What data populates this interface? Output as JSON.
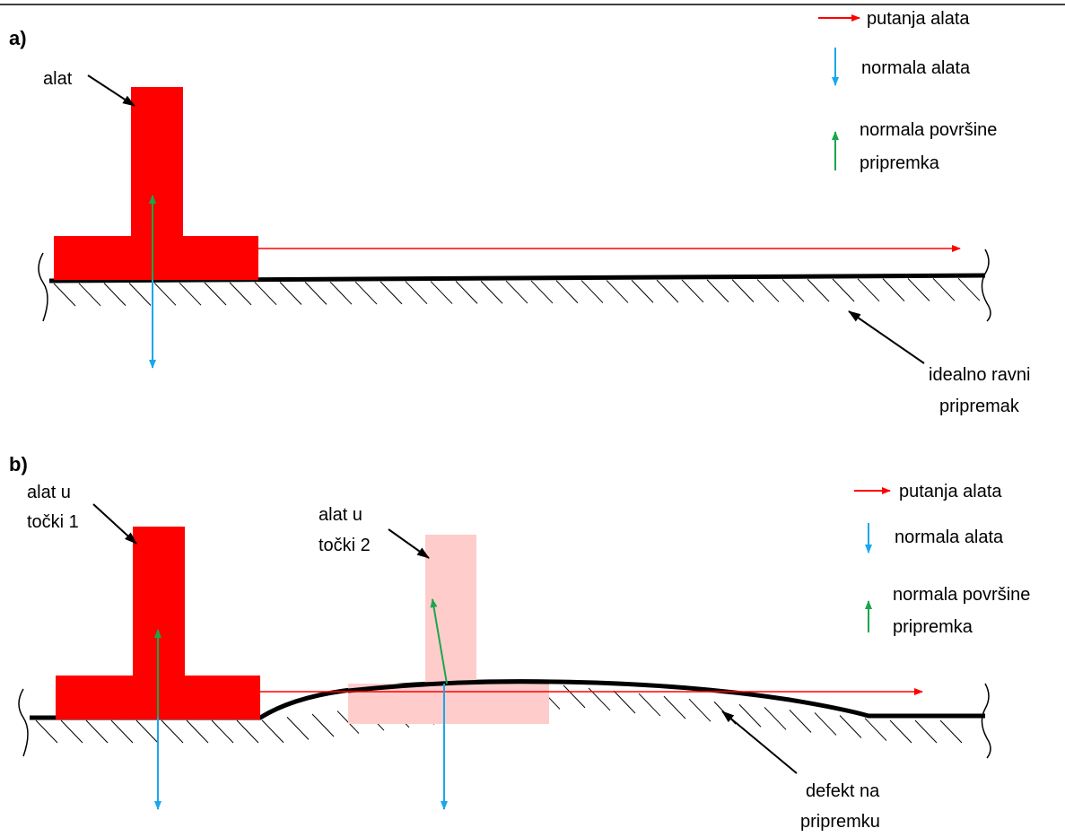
{
  "colors": {
    "tool": "#ff0000",
    "tool_ghost": "#ffcccc",
    "path_arrow": "#ff0000",
    "tool_normal": "#1aa7ec",
    "surface_normal": "#1aa64b",
    "surface": "#000000"
  },
  "panel_a": {
    "label": "a)",
    "tool_label": "alat",
    "surface_label_line1": "idealno ravni",
    "surface_label_line2": "pripremak"
  },
  "panel_b": {
    "label": "b)",
    "tool1_label_line1": "alat u",
    "tool1_label_line2": "točki 1",
    "tool2_label_line1": "alat u",
    "tool2_label_line2": "točki 2",
    "defect_label_line1": "defekt na",
    "defect_label_line2": "pripremku"
  },
  "legend": {
    "path": "putanja alata",
    "tool_normal": "normala alata",
    "surface_normal_line1": "normala površine",
    "surface_normal_line2": "pripremka"
  }
}
